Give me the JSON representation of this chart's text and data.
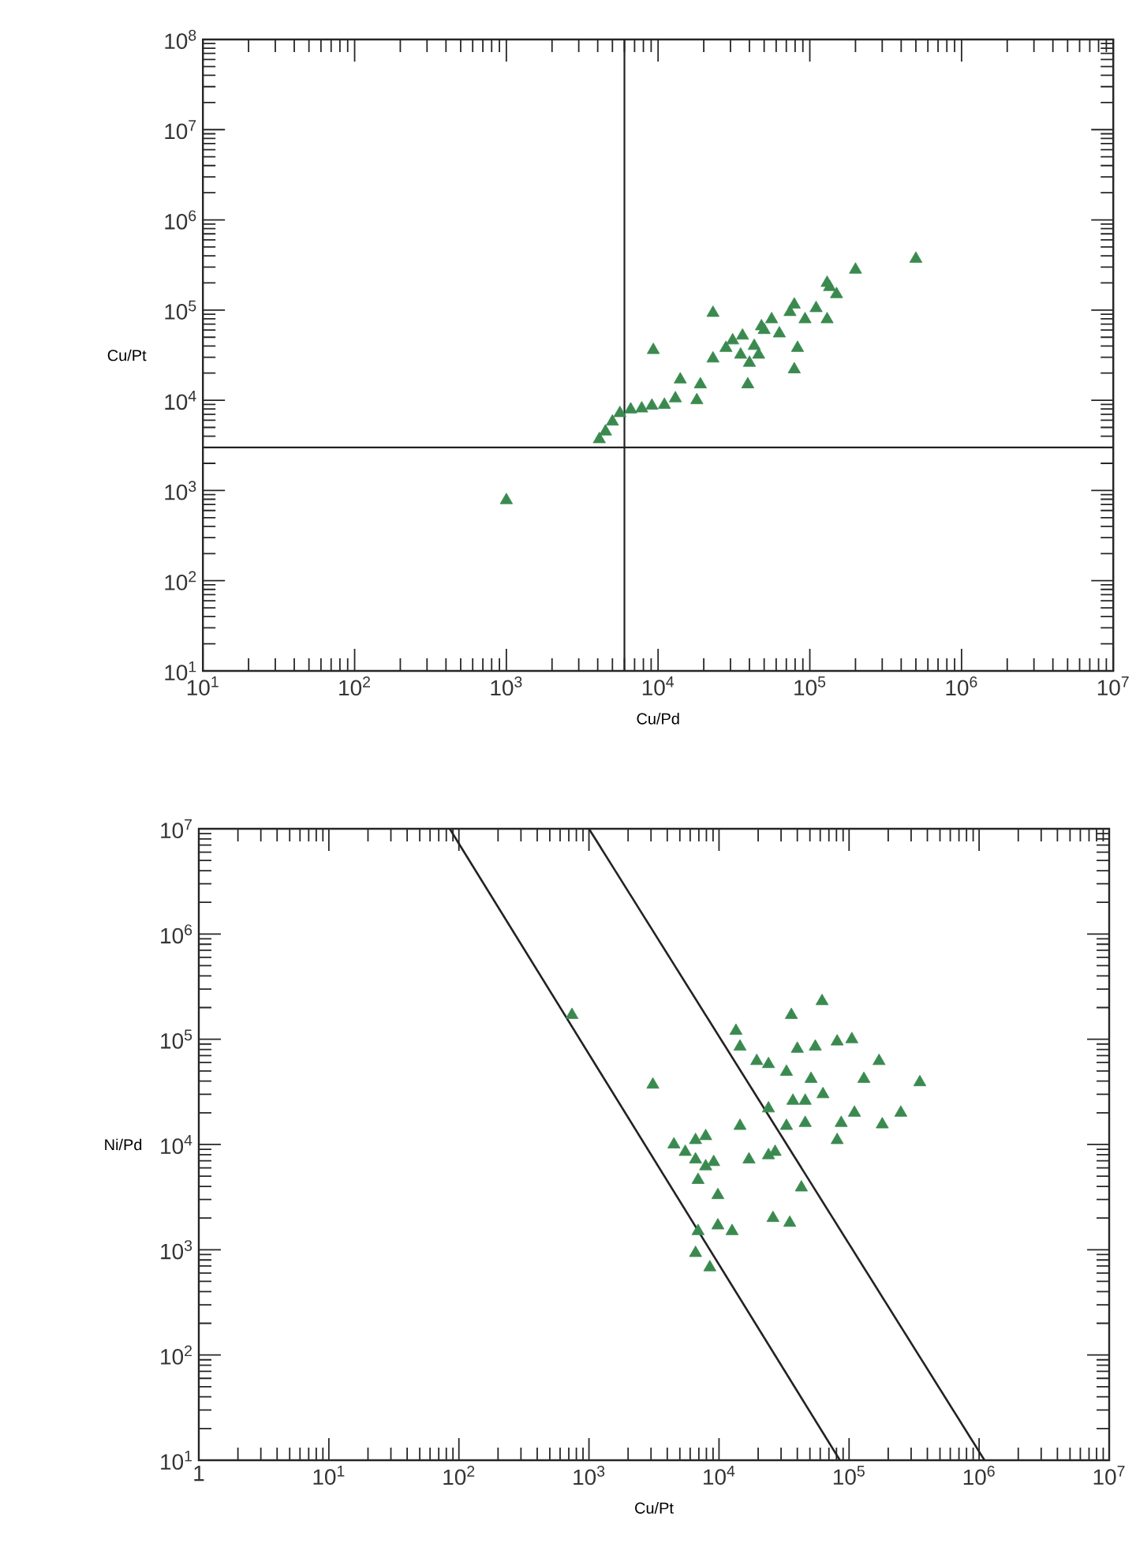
{
  "chart_data": [
    {
      "type": "scatter",
      "xlabel": "Cu/Pd",
      "ylabel": "Cu/Pt",
      "log": "xy",
      "marker": "triangle",
      "xlim": [
        10,
        10000000
      ],
      "ylim": [
        10,
        100000000
      ],
      "xticks": [
        {
          "value": 10,
          "label": "10$^{1}$"
        },
        {
          "value": 100,
          "label": "10$^{2}$"
        },
        {
          "value": 1000,
          "label": "10$^{3}$"
        },
        {
          "value": 10000,
          "label": "10$^{4}$"
        },
        {
          "value": 100000,
          "label": "10$^{5}$"
        },
        {
          "value": 1000000,
          "label": "10$^{6}$"
        },
        {
          "value": 10000000,
          "label": "10$^{7}$"
        }
      ],
      "yticks": [
        {
          "value": 10,
          "label": "10$^{1}$"
        },
        {
          "value": 100,
          "label": "10$^{2}$"
        },
        {
          "value": 1000,
          "label": "10$^{3}$"
        },
        {
          "value": 10000,
          "label": "10$^{4}$"
        },
        {
          "value": 100000,
          "label": "10$^{5}$"
        },
        {
          "value": 1000000,
          "label": "10$^{6}$"
        },
        {
          "value": 10000000,
          "label": "10$^{7}$"
        },
        {
          "value": 100000000,
          "label": "10$^{8}$"
        }
      ],
      "ref_lines": [
        {
          "axis": "x",
          "value": 6000,
          "color": "#222222"
        },
        {
          "axis": "y",
          "value": 3000,
          "color": "#222222"
        }
      ],
      "series": [
        {
          "color": "#3a8a4f",
          "x": [
            1000,
            500000,
            200000,
            23000,
            9300,
            39000,
            4100,
            4500,
            5000,
            5600,
            6600,
            7800,
            9100,
            11000,
            13000,
            14000,
            18000,
            19000,
            23000,
            28000,
            31000,
            36000,
            43000,
            46000,
            50000,
            56000,
            63000,
            74000,
            79000,
            83000,
            79000,
            93000,
            110000,
            130000,
            135000,
            150000,
            130000,
            40000,
            48000,
            35000
          ],
          "values": [
            780,
            370000,
            280000,
            93000,
            36000,
            15000,
            3700,
            4500,
            5800,
            7200,
            7900,
            8100,
            8700,
            8900,
            10500,
            17000,
            10000,
            15000,
            29000,
            38000,
            46000,
            52000,
            40000,
            32000,
            60000,
            79000,
            55000,
            95000,
            115000,
            38000,
            22000,
            79000,
            105000,
            79000,
            180000,
            150000,
            200000,
            26000,
            66000,
            32000
          ]
        }
      ]
    },
    {
      "type": "scatter",
      "xlabel": "Cu/Pt",
      "ylabel": "Ni/Pd",
      "log": "xy",
      "marker": "triangle",
      "xlim": [
        1,
        10000000
      ],
      "ylim": [
        10,
        10000000
      ],
      "xticks": [
        1,
        {
          "value": 10,
          "label": "10$^{1}$"
        },
        {
          "value": 100,
          "label": "10$^{2}$"
        },
        {
          "value": 1000,
          "label": "10$^{3}$"
        },
        {
          "value": 10000,
          "label": "10$^{4}$"
        },
        {
          "value": 100000,
          "label": "10$^{5}$"
        },
        {
          "value": 1000000,
          "label": "10$^{6}$"
        },
        {
          "value": 10000000,
          "label": "10$^{7}$"
        }
      ],
      "yticks": [
        {
          "value": 10,
          "label": "10$^{1}$"
        },
        {
          "value": 100,
          "label": "10$^{2}$"
        },
        {
          "value": 1000,
          "label": "10$^{3}$"
        },
        {
          "value": 10000,
          "label": "10$^{4}$"
        },
        {
          "value": 100000,
          "label": "10$^{5}$"
        },
        {
          "value": 1000000,
          "label": "10$^{6}$"
        },
        {
          "value": 10000000,
          "label": "10$^{7}$"
        }
      ],
      "series": [
        {
          "color": "#3a8a4f",
          "x": [
            740,
            3100,
            13500,
            14500,
            19500,
            24000,
            33000,
            36000,
            62000,
            40000,
            55000,
            81000,
            105000,
            170000,
            130000,
            350000,
            250000,
            180000,
            110000,
            87000,
            81000,
            63000,
            51000,
            46000,
            37000,
            46000,
            33000,
            24000,
            14500,
            27000,
            24000,
            17000,
            43000,
            26000,
            35000,
            4500,
            5500,
            6600,
            7900,
            6600,
            7900,
            6900,
            9100,
            9800,
            6900,
            9800,
            12600,
            6600,
            8500
          ],
          "values": [
            170000,
            37000,
            120000,
            85000,
            62000,
            58000,
            49000,
            170000,
            230000,
            81000,
            85000,
            95000,
            100000,
            62000,
            42000,
            39000,
            20000,
            15500,
            20000,
            16000,
            11000,
            30000,
            42000,
            26000,
            26000,
            16000,
            15000,
            22000,
            15000,
            8500,
            7900,
            7200,
            3900,
            2000,
            1800,
            10000,
            8500,
            11000,
            12000,
            7200,
            6200,
            4600,
            6800,
            3300,
            1500,
            1700,
            1500,
            930,
            680
          ]
        },
        {
          "type": "line",
          "marker": "none",
          "color": "#222222",
          "x": [
            85,
            85000
          ],
          "values": [
            10000000,
            10
          ]
        },
        {
          "type": "line",
          "marker": "none",
          "color": "#222222",
          "x": [
            1000,
            1100000
          ],
          "values": [
            10000000,
            10
          ]
        }
      ]
    }
  ]
}
